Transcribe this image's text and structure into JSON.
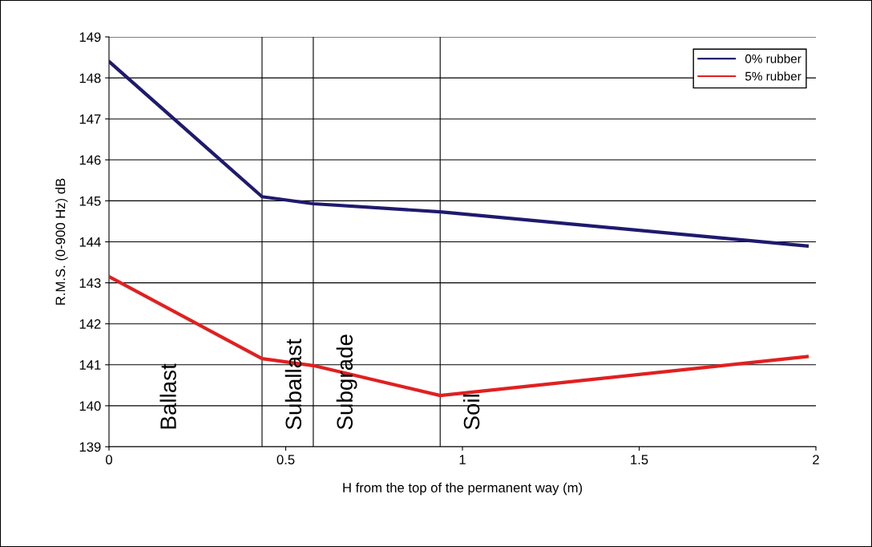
{
  "chart_data": {
    "type": "line",
    "xlabel": "H from the top of the permanent way (m)",
    "ylabel": "R.M.S. (0-900 Hz) dB",
    "series": [
      {
        "name": "0% rubber",
        "color": "#1f1a6e",
        "x": [
          0,
          0.433,
          0.578,
          0.937,
          1.975
        ],
        "values": [
          148.4,
          145.1,
          144.93,
          144.73,
          143.9
        ]
      },
      {
        "name": "5% rubber",
        "color": "#e02020",
        "x": [
          0,
          0.433,
          0.578,
          0.937,
          1.975
        ],
        "values": [
          143.15,
          141.15,
          140.98,
          140.25,
          141.2
        ]
      }
    ],
    "xlim": [
      0,
      2
    ],
    "xticks": [
      0,
      0.5,
      1,
      1.5,
      2
    ],
    "ylim": [
      139,
      149
    ],
    "yticks": [
      139,
      140,
      141,
      142,
      143,
      144,
      145,
      146,
      147,
      148,
      149
    ],
    "grid": "y",
    "legend": "top right",
    "marker": "none",
    "line_style": "solid",
    "ref_lines": [
      {
        "axis": "x",
        "value": 0.433,
        "color": "#000000"
      },
      {
        "axis": "x",
        "value": 0.578,
        "color": "#000000"
      },
      {
        "axis": "x",
        "value": 0.937,
        "color": "#000000"
      }
    ],
    "annotations": [
      "Ballast",
      "Suballast",
      "Subgrade",
      "Soil"
    ]
  }
}
